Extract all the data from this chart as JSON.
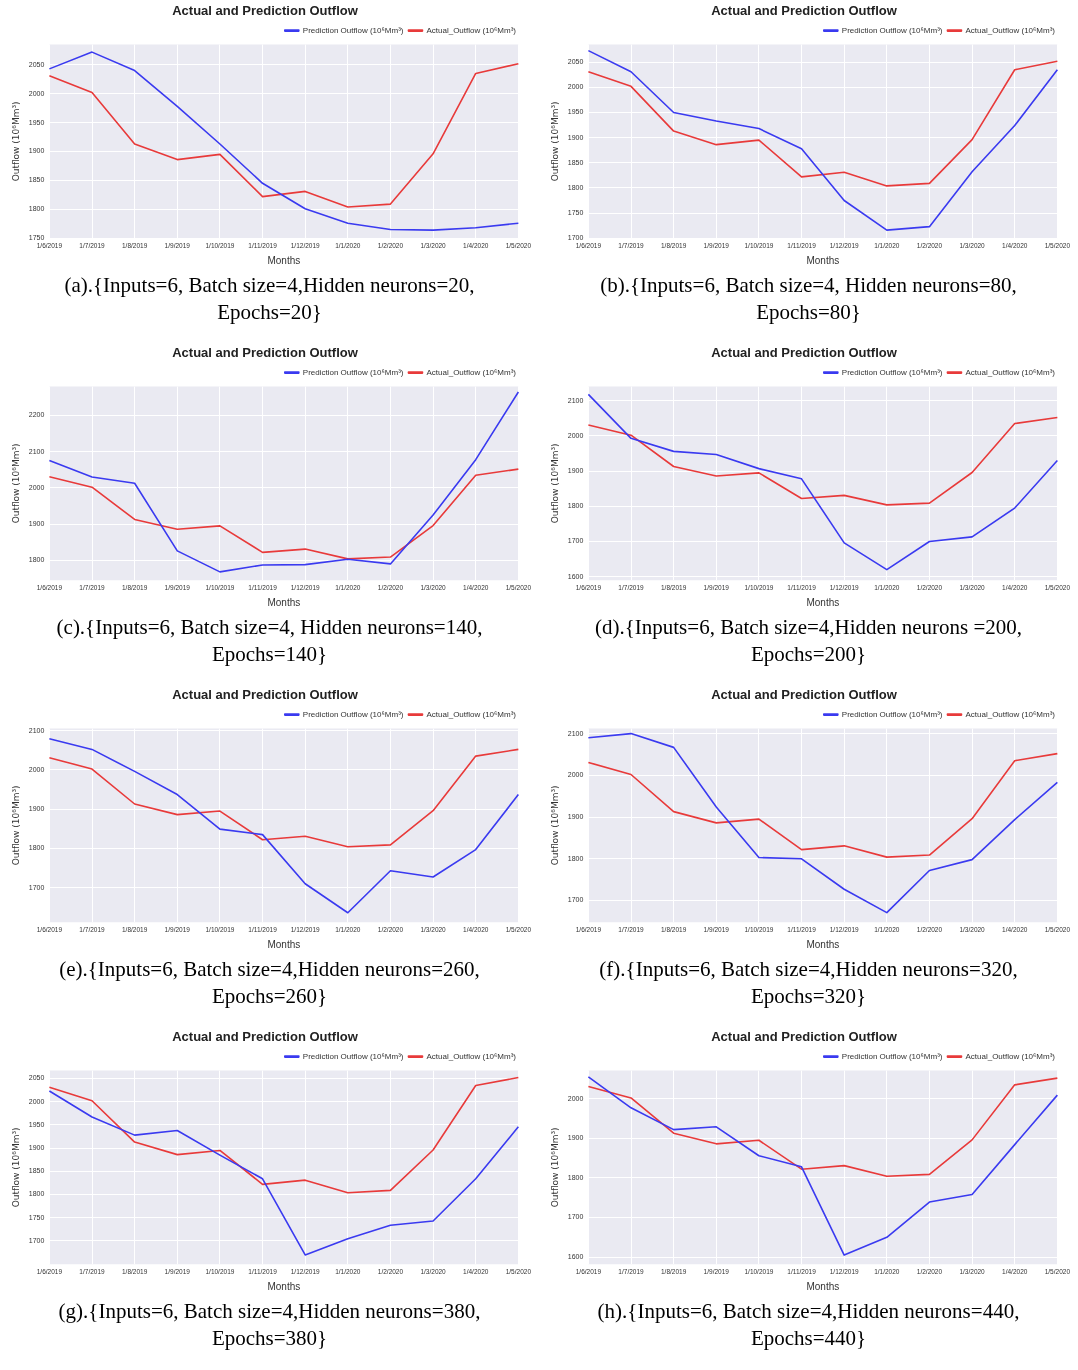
{
  "chart_data": [
    {
      "type": "line",
      "title": "Actual and Prediction Outflow",
      "xlabel": "Months",
      "ylabel": "Outflow (10⁶Mm³)",
      "categories": [
        "1/6/2019",
        "1/7/2019",
        "1/8/2019",
        "1/9/2019",
        "1/10/2019",
        "1/11/2019",
        "1/12/2019",
        "1/1/2020",
        "1/2/2020",
        "1/3/2020",
        "1/4/2020",
        "1/5/2020"
      ],
      "ylim": [
        1750,
        2085
      ],
      "yticks": [
        1750,
        1800,
        1850,
        1900,
        1950,
        2000,
        2050
      ],
      "grid": true,
      "legend": "top right",
      "marker": "none",
      "annotations": [
        "(a).{Inputs=6, Batch size=4,Hidden neurons=20, Epochs=20}"
      ],
      "series": [
        {
          "name": "Prediction Outflow (10⁶Mm³)",
          "color": "#3a3af0",
          "values": [
            2043,
            2072,
            2040,
            1978,
            1913,
            1845,
            1801,
            1776,
            1765,
            1764,
            1768,
            1776
          ]
        },
        {
          "name": "Actual_Outflow (10⁶Mm³)",
          "color": "#e83a3a",
          "values": [
            2031,
            2002,
            1913,
            1886,
            1895,
            1822,
            1831,
            1804,
            1809,
            1896,
            2035,
            2052
          ]
        }
      ]
    },
    {
      "type": "line",
      "title": "Actual and Prediction Outflow",
      "xlabel": "Months",
      "ylabel": "Outflow (10⁶Mm³)",
      "categories": [
        "1/6/2019",
        "1/7/2019",
        "1/8/2019",
        "1/9/2019",
        "1/10/2019",
        "1/11/2019",
        "1/12/2019",
        "1/1/2020",
        "1/2/2020",
        "1/3/2020",
        "1/4/2020",
        "1/5/2020"
      ],
      "ylim": [
        1700,
        2085
      ],
      "yticks": [
        1700,
        1750,
        1800,
        1850,
        1900,
        1950,
        2000,
        2050
      ],
      "grid": true,
      "legend": "top right",
      "marker": "none",
      "annotations": [
        "(b).{Inputs=6, Batch size=4, Hidden neurons=80, Epochs=80}"
      ],
      "series": [
        {
          "name": "Prediction Outflow (10⁶Mm³)",
          "color": "#3a3af0",
          "values": [
            2073,
            2031,
            1950,
            1933,
            1918,
            1878,
            1775,
            1716,
            1723,
            1832,
            1924,
            2035
          ]
        },
        {
          "name": "Actual_Outflow (10⁶Mm³)",
          "color": "#e83a3a",
          "values": [
            2031,
            2002,
            1913,
            1886,
            1895,
            1822,
            1831,
            1804,
            1809,
            1896,
            2035,
            2052
          ]
        }
      ]
    },
    {
      "type": "line",
      "title": "Actual and Prediction Outflow",
      "xlabel": "Months",
      "ylabel": "Outflow (10⁶Mm³)",
      "categories": [
        "1/6/2019",
        "1/7/2019",
        "1/8/2019",
        "1/9/2019",
        "1/10/2019",
        "1/11/2019",
        "1/12/2019",
        "1/1/2020",
        "1/2/2020",
        "1/3/2020",
        "1/4/2020",
        "1/5/2020"
      ],
      "ylim": [
        1745,
        2280
      ],
      "yticks": [
        1800,
        1900,
        2000,
        2100,
        2200
      ],
      "grid": true,
      "legend": "top right",
      "marker": "none",
      "annotations": [
        "(c).{Inputs=6, Batch size=4, Hidden neurons=140, Epochs=140}"
      ],
      "series": [
        {
          "name": "Prediction Outflow (10⁶Mm³)",
          "color": "#3a3af0",
          "values": [
            2076,
            2030,
            2013,
            1826,
            1768,
            1787,
            1788,
            1803,
            1790,
            1925,
            2078,
            2265
          ]
        },
        {
          "name": "Actual_Outflow (10⁶Mm³)",
          "color": "#e83a3a",
          "values": [
            2031,
            2002,
            1913,
            1886,
            1895,
            1822,
            1831,
            1804,
            1809,
            1896,
            2035,
            2052
          ]
        }
      ]
    },
    {
      "type": "line",
      "title": "Actual and Prediction Outflow",
      "xlabel": "Months",
      "ylabel": "Outflow (10⁶Mm³)",
      "categories": [
        "1/6/2019",
        "1/7/2019",
        "1/8/2019",
        "1/9/2019",
        "1/10/2019",
        "1/11/2019",
        "1/12/2019",
        "1/1/2020",
        "1/2/2020",
        "1/3/2020",
        "1/4/2020",
        "1/5/2020"
      ],
      "ylim": [
        1590,
        2140
      ],
      "yticks": [
        1600,
        1700,
        1800,
        1900,
        2000,
        2100
      ],
      "grid": true,
      "legend": "top right",
      "marker": "none",
      "annotations": [
        "(d).{Inputs=6, Batch size=4,Hidden neurons =200, Epochs=200}"
      ],
      "series": [
        {
          "name": "Prediction Outflow (10⁶Mm³)",
          "color": "#3a3af0",
          "values": [
            2118,
            1993,
            1956,
            1947,
            1907,
            1878,
            1696,
            1620,
            1700,
            1713,
            1795,
            1930
          ]
        },
        {
          "name": "Actual_Outflow (10⁶Mm³)",
          "color": "#e83a3a",
          "values": [
            2031,
            2002,
            1913,
            1886,
            1895,
            1822,
            1831,
            1804,
            1809,
            1896,
            2035,
            2052
          ]
        }
      ]
    },
    {
      "type": "line",
      "title": "Actual and Prediction Outflow",
      "xlabel": "Months",
      "ylabel": "Outflow (10⁶Mm³)",
      "categories": [
        "1/6/2019",
        "1/7/2019",
        "1/8/2019",
        "1/9/2019",
        "1/10/2019",
        "1/11/2019",
        "1/12/2019",
        "1/1/2020",
        "1/2/2020",
        "1/3/2020",
        "1/4/2020",
        "1/5/2020"
      ],
      "ylim": [
        1612,
        2105
      ],
      "yticks": [
        1700,
        1800,
        1900,
        2000,
        2100
      ],
      "grid": true,
      "legend": "top right",
      "marker": "none",
      "annotations": [
        "(e).{Inputs=6, Batch size=4,Hidden neurons=260, Epochs=260}"
      ],
      "series": [
        {
          "name": "Prediction Outflow (10⁶Mm³)",
          "color": "#3a3af0",
          "values": [
            2079,
            2052,
            1996,
            1937,
            1849,
            1835,
            1710,
            1636,
            1743,
            1727,
            1797,
            1937
          ]
        },
        {
          "name": "Actual_Outflow (10⁶Mm³)",
          "color": "#e83a3a",
          "values": [
            2031,
            2002,
            1913,
            1886,
            1895,
            1822,
            1831,
            1804,
            1809,
            1896,
            2035,
            2052
          ]
        }
      ]
    },
    {
      "type": "line",
      "title": "Actual and Prediction Outflow",
      "xlabel": "Months",
      "ylabel": "Outflow (10⁶Mm³)",
      "categories": [
        "1/6/2019",
        "1/7/2019",
        "1/8/2019",
        "1/9/2019",
        "1/10/2019",
        "1/11/2019",
        "1/12/2019",
        "1/1/2020",
        "1/2/2020",
        "1/3/2020",
        "1/4/2020",
        "1/5/2020"
      ],
      "ylim": [
        1648,
        2112
      ],
      "yticks": [
        1700,
        1800,
        1900,
        2000,
        2100
      ],
      "grid": true,
      "legend": "top right",
      "marker": "none",
      "annotations": [
        "(f).{Inputs=6, Batch size=4,Hidden neurons=320, Epochs=320}"
      ],
      "series": [
        {
          "name": "Prediction Outflow (10⁶Mm³)",
          "color": "#3a3af0",
          "values": [
            2090,
            2100,
            2067,
            1924,
            1803,
            1800,
            1727,
            1671,
            1772,
            1798,
            1894,
            1983
          ]
        },
        {
          "name": "Actual_Outflow (10⁶Mm³)",
          "color": "#e83a3a",
          "values": [
            2031,
            2002,
            1913,
            1886,
            1895,
            1822,
            1831,
            1804,
            1809,
            1896,
            2035,
            2052
          ]
        }
      ]
    },
    {
      "type": "line",
      "title": "Actual and Prediction Outflow",
      "xlabel": "Months",
      "ylabel": "Outflow (10⁶Mm³)",
      "categories": [
        "1/6/2019",
        "1/7/2019",
        "1/8/2019",
        "1/9/2019",
        "1/10/2019",
        "1/11/2019",
        "1/12/2019",
        "1/1/2020",
        "1/2/2020",
        "1/3/2020",
        "1/4/2020",
        "1/5/2020"
      ],
      "ylim": [
        1650,
        2067
      ],
      "yticks": [
        1700,
        1750,
        1800,
        1850,
        1900,
        1950,
        2000,
        2050
      ],
      "grid": true,
      "legend": "top right",
      "marker": "none",
      "annotations": [
        "(g).{Inputs=6, Batch size=4,Hidden neurons=380, Epochs=380}"
      ],
      "series": [
        {
          "name": "Prediction Outflow (10⁶Mm³)",
          "color": "#3a3af0",
          "values": [
            2023,
            1967,
            1928,
            1938,
            1885,
            1834,
            1670,
            1705,
            1734,
            1743,
            1834,
            1946
          ]
        },
        {
          "name": "Actual_Outflow (10⁶Mm³)",
          "color": "#e83a3a",
          "values": [
            2031,
            2002,
            1913,
            1886,
            1895,
            1822,
            1831,
            1804,
            1809,
            1896,
            2035,
            2052
          ]
        }
      ]
    },
    {
      "type": "line",
      "title": "Actual and Prediction Outflow",
      "xlabel": "Months",
      "ylabel": "Outflow (10⁶Mm³)",
      "categories": [
        "1/6/2019",
        "1/7/2019",
        "1/8/2019",
        "1/9/2019",
        "1/10/2019",
        "1/11/2019",
        "1/12/2019",
        "1/1/2020",
        "1/2/2020",
        "1/3/2020",
        "1/4/2020",
        "1/5/2020"
      ],
      "ylim": [
        1582,
        2071
      ],
      "yticks": [
        1600,
        1700,
        1800,
        1900,
        2000
      ],
      "grid": true,
      "legend": "top right",
      "marker": "none",
      "annotations": [
        "(h).{Inputs=6, Batch size=4,Hidden neurons=440, Epochs=440}"
      ],
      "series": [
        {
          "name": "Prediction Outflow (10⁶Mm³)",
          "color": "#3a3af0",
          "values": [
            2055,
            1977,
            1922,
            1929,
            1856,
            1828,
            1605,
            1650,
            1739,
            1758,
            1884,
            2009
          ]
        },
        {
          "name": "Actual_Outflow (10⁶Mm³)",
          "color": "#e83a3a",
          "values": [
            2031,
            2002,
            1913,
            1886,
            1895,
            1822,
            1831,
            1804,
            1809,
            1896,
            2035,
            2052
          ]
        }
      ]
    }
  ]
}
